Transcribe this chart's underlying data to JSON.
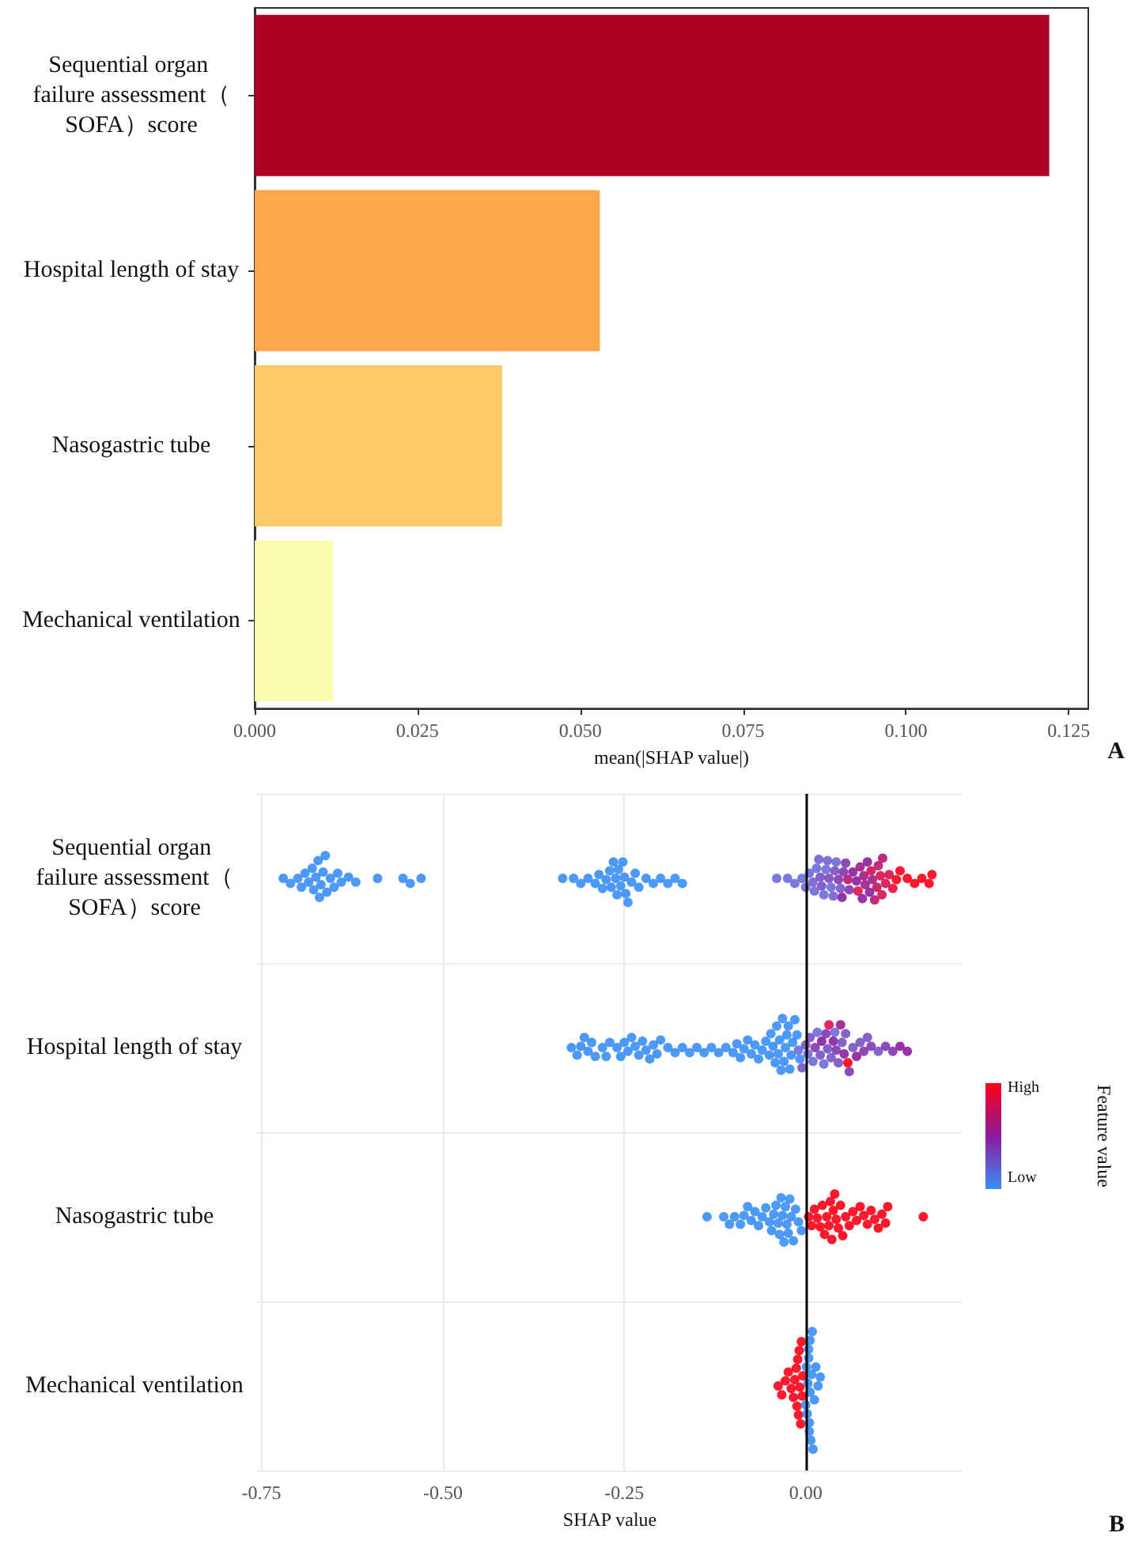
{
  "chart_data": [
    {
      "type": "bar",
      "orientation": "horizontal",
      "xlabel": "mean(|SHAP value|)",
      "annotations": [
        "A"
      ],
      "categories": [
        "Sequential organ failure assessment（SOFA）score",
        "Hospital length of stay",
        "Nasogastric tube",
        "Mechanical ventilation"
      ],
      "values": [
        0.122,
        0.053,
        0.038,
        0.012
      ],
      "colors": [
        "#ad0022",
        "#fba84a",
        "#fdc868",
        "#fdfdb0"
      ],
      "xlim": [
        0,
        0.128
      ],
      "xticks": [
        {
          "value": 0,
          "label": "0.000"
        },
        0.025,
        {
          "value": 0.05,
          "label": "0.050"
        },
        0.075,
        {
          "value": 0.1,
          "label": "0.100"
        },
        0.125
      ],
      "grid": false
    },
    {
      "type": "scatter",
      "orientation": "horizontal",
      "xlabel": "SHAP value",
      "clabel": "Feature value",
      "annotations": [
        "B",
        "High",
        "Low"
      ],
      "categories": [
        "Sequential organ failure assessment（SOFA）score",
        "Hospital length of stay",
        "Nasogastric tube",
        "Mechanical ventilation"
      ],
      "xlim": [
        -0.755,
        0.215
      ],
      "xticks": [
        -0.75,
        {
          "value": -0.5,
          "label": "-0.50"
        },
        -0.25,
        {
          "value": 0,
          "label": "0.00"
        }
      ],
      "grid": true,
      "marker": "circle",
      "ref_lines": [
        {
          "axis": "x",
          "value": 0,
          "label": null,
          "color": "#000000"
        }
      ],
      "series": [
        {
          "x": [
            "Sequential organ failure assessment（SOFA）score",
            "Sequential organ failure assessment（SOFA）score",
            "Sequential organ failure assessment（SOFA）score",
            "Sequential organ failure assessment（SOFA）score",
            "Sequential organ failure assessment（SOFA）score",
            "Sequential organ failure assessment（SOFA）score",
            "Sequential organ failure assessment（SOFA）score",
            "Sequential organ failure assessment（SOFA）score",
            "Sequential organ failure assessment（SOFA）score",
            "Sequential organ failure assessment（SOFA）score",
            "Sequential organ failure assessment（SOFA）score",
            "Sequential organ failure assessment（SOFA）score",
            "Sequential organ failure assessment（SOFA）score",
            "Sequential organ failure assessment（SOFA）score",
            "Sequential organ failure assessment（SOFA）score",
            "Sequential organ failure assessment（SOFA）score",
            "Sequential organ failure assessment（SOFA）score",
            "Sequential organ failure assessment（SOFA）score",
            "Sequential organ failure assessment（SOFA）score",
            "Sequential organ failure assessment（SOFA）score",
            "Sequential organ failure assessment（SOFA）score",
            "Sequential organ failure assessment（SOFA）score",
            "Sequential organ failure assessment（SOFA）score",
            "Sequential organ failure assessment（SOFA）score",
            "Sequential organ failure assessment（SOFA）score",
            "Sequential organ failure assessment（SOFA）score",
            "Sequential organ failure assessment（SOFA）score",
            "Sequential organ failure assessment（SOFA）score",
            "Sequential organ failure assessment（SOFA）score",
            "Sequential organ failure assessment（SOFA）score",
            "Sequential organ failure assessment（SOFA）score",
            "Sequential organ failure assessment（SOFA）score",
            "Sequential organ failure assessment（SOFA）score",
            "Sequential organ failure assessment（SOFA）score",
            "Sequential organ failure assessment（SOFA）score",
            "Sequential organ failure assessment（SOFA）score",
            "Sequential organ failure assessment（SOFA）score",
            "Sequential organ failure assessment（SOFA）score",
            "Sequential organ failure assessment（SOFA）score",
            "Sequential organ failure assessment（SOFA）score",
            "Sequential organ failure assessment（SOFA）score",
            "Sequential organ failure assessment（SOFA）score",
            "Sequential organ failure assessment（SOFA）score",
            "Sequential organ failure assessment（SOFA）score",
            "Sequential organ failure assessment（SOFA）score",
            "Sequential organ failure assessment（SOFA）score",
            "Sequential organ failure assessment（SOFA）score",
            "Sequential organ failure assessment（SOFA）score",
            "Sequential organ failure assessment（SOFA）score",
            "Sequential organ failure assessment（SOFA）score",
            "Sequential organ failure assessment（SOFA）score",
            "Sequential organ failure assessment（SOFA）score",
            "Sequential organ failure assessment（SOFA）score",
            "Sequential organ failure assessment（SOFA）score",
            "Sequential organ failure assessment（SOFA）score",
            "Sequential organ failure assessment（SOFA）score",
            "Sequential organ failure assessment（SOFA）score",
            "Sequential organ failure assessment（SOFA）score",
            "Sequential organ failure assessment（SOFA）score",
            "Sequential organ failure assessment（SOFA）score",
            "Sequential organ failure assessment（SOFA）score",
            "Sequential organ failure assessment（SOFA）score",
            "Sequential organ failure assessment（SOFA）score",
            "Sequential organ failure assessment（SOFA）score",
            "Sequential organ failure assessment（SOFA）score",
            "Sequential organ failure assessment（SOFA）score",
            "Sequential organ failure assessment（SOFA）score",
            "Sequential organ failure assessment（SOFA）score",
            "Sequential organ failure assessment（SOFA）score",
            "Sequential organ failure assessment（SOFA）score",
            "Sequential organ failure assessment（SOFA）score",
            "Sequential organ failure assessment（SOFA）score",
            "Sequential organ failure assessment（SOFA）score",
            "Sequential organ failure assessment（SOFA）score",
            "Sequential organ failure assessment（SOFA）score",
            "Sequential organ failure assessment（SOFA）score",
            "Sequential organ failure assessment（SOFA）score",
            "Sequential organ failure assessment（SOFA）score",
            "Sequential organ failure assessment（SOFA）score",
            "Sequential organ failure assessment（SOFA）score",
            "Sequential organ failure assessment（SOFA）score",
            "Sequential organ failure assessment（SOFA）score",
            "Sequential organ failure assessment（SOFA）score",
            "Sequential organ failure assessment（SOFA）score",
            "Sequential organ failure assessment（SOFA）score",
            "Sequential organ failure assessment（SOFA）score",
            "Sequential organ failure assessment（SOFA）score",
            "Sequential organ failure assessment（SOFA）score",
            "Sequential organ failure assessment（SOFA）score",
            "Sequential organ failure assessment（SOFA）score",
            "Sequential organ failure assessment（SOFA）score",
            "Sequential organ failure assessment（SOFA）score",
            "Sequential organ failure assessment（SOFA）score",
            "Sequential organ failure assessment（SOFA）score",
            "Sequential organ failure assessment（SOFA）score",
            "Sequential organ failure assessment（SOFA）score",
            "Sequential organ failure assessment（SOFA）score",
            "Sequential organ failure assessment（SOFA）score",
            "Sequential organ failure assessment（SOFA）score",
            "Sequential organ failure assessment（SOFA）score",
            "Sequential organ failure assessment（SOFA）score",
            "Sequential organ failure assessment（SOFA）score",
            "Sequential organ failure assessment（SOFA）score",
            "Sequential organ failure assessment（SOFA）score",
            "Sequential organ failure assessment（SOFA）score",
            "Sequential organ failure assessment（SOFA）score",
            "Sequential organ failure assessment（SOFA）score"
          ],
          "values": [
            -0.72,
            -0.71,
            -0.7,
            -0.695,
            -0.69,
            -0.685,
            -0.68,
            -0.678,
            -0.675,
            -0.672,
            -0.67,
            -0.668,
            -0.665,
            -0.662,
            -0.66,
            -0.655,
            -0.65,
            -0.645,
            -0.64,
            -0.63,
            -0.62,
            -0.59,
            -0.555,
            -0.545,
            -0.53,
            -0.335,
            -0.32,
            -0.31,
            -0.3,
            -0.29,
            -0.285,
            -0.28,
            -0.275,
            -0.27,
            -0.268,
            -0.265,
            -0.262,
            -0.26,
            -0.258,
            -0.255,
            -0.252,
            -0.25,
            -0.248,
            -0.245,
            -0.24,
            -0.235,
            -0.23,
            -0.22,
            -0.21,
            -0.2,
            -0.19,
            -0.18,
            -0.17,
            -0.04,
            -0.025,
            -0.015,
            -0.005,
            0,
            0.005,
            0.01,
            0.015,
            0.02,
            0.025,
            0.03,
            0.035,
            0.04,
            0.045,
            0.05,
            0.055,
            0.06,
            0.065,
            0.07,
            0.075,
            0.08,
            0.085,
            0.09,
            0.095,
            0.1,
            0.105,
            0.11,
            0.12,
            0.13,
            0.14,
            0.15,
            0.16,
            0.17,
            0.012,
            0.018,
            0.022,
            0.028,
            0.032,
            0.038,
            0.042,
            0.048,
            0.052,
            0.058,
            0.072,
            0.078,
            0.082,
            0.088,
            0.092,
            0.098,
            0.103,
            0.106,
            0.115,
            0.125,
            0.174
          ],
          "colors": [
            "#3a8ef6",
            "#3a8ef6",
            "#3a8ef6",
            "#3a8ef6",
            "#3a8ef6",
            "#3a8ef6",
            "#3a8ef6",
            "#3a8ef6",
            "#3a8ef6",
            "#3a8ef6",
            "#3a8ef6",
            "#3a8ef6",
            "#3a8ef6",
            "#3a8ef6",
            "#3a8ef6",
            "#3a8ef6",
            "#3a8ef6",
            "#3a8ef6",
            "#3a8ef6",
            "#3a8ef6",
            "#3a8ef6",
            "#3a8ef6",
            "#3a8ef6",
            "#3a8ef6",
            "#3a8ef6",
            "#3a8ef6",
            "#3a8ef6",
            "#3a8ef6",
            "#3a8ef6",
            "#3a8ef6",
            "#3a8ef6",
            "#3a8ef6",
            "#3a8ef6",
            "#3a8ef6",
            "#3a8ef6",
            "#3a8ef6",
            "#3a8ef6",
            "#3a8ef6",
            "#3a8ef6",
            "#3a8ef6",
            "#3a8ef6",
            "#3a8ef6",
            "#3a8ef6",
            "#3a8ef6",
            "#3a8ef6",
            "#3a8ef6",
            "#3a8ef6",
            "#3a8ef6",
            "#3a8ef6",
            "#3a8ef6",
            "#3a8ef6",
            "#3a8ef6",
            "#3a8ef6",
            "#6b6bd9",
            "#6b6bd9",
            "#6b6bd9",
            "#6b6bd9",
            "#6b6bd9",
            "#6b6bd9",
            "#7060d0",
            "#6b6bd9",
            "#7852c4",
            "#6b6bd9",
            "#7060d0",
            "#6b6bd9",
            "#7852c4",
            "#8236ae",
            "#8c1f9e",
            "#8236ae",
            "#8236ae",
            "#8c1f9e",
            "#8c1f9e",
            "#a01a8a",
            "#a01a8a",
            "#8c1f9e",
            "#d80f4e",
            "#bb1570",
            "#bb1570",
            "#d80f4e",
            "#d80f4e",
            "#e80c38",
            "#ff0016",
            "#ff0016",
            "#ff0016",
            "#ff0016",
            "#ff0016",
            "#6b6bd9",
            "#7060d0",
            "#7852c4",
            "#6b6bd9",
            "#7d48ba",
            "#7060d0",
            "#6b6bd9",
            "#7852c4",
            "#8236ae",
            "#bb1570",
            "#d80f4e",
            "#8c1f9e",
            "#a01a8a",
            "#8c1f9e",
            "#a01a8a",
            "#c8125f",
            "#d80f4e",
            "#bb1570",
            "#d80f4e",
            "#ff0016",
            "#ff0016"
          ]
        },
        {
          "x": [
            "Hospital length of stay",
            "Hospital length of stay",
            "Hospital length of stay",
            "Hospital length of stay",
            "Hospital length of stay",
            "Hospital length of stay",
            "Hospital length of stay",
            "Hospital length of stay",
            "Hospital length of stay",
            "Hospital length of stay",
            "Hospital length of stay",
            "Hospital length of stay",
            "Hospital length of stay",
            "Hospital length of stay",
            "Hospital length of stay",
            "Hospital length of stay",
            "Hospital length of stay",
            "Hospital length of stay",
            "Hospital length of stay",
            "Hospital length of stay",
            "Hospital length of stay",
            "Hospital length of stay",
            "Hospital length of stay",
            "Hospital length of stay",
            "Hospital length of stay",
            "Hospital length of stay",
            "Hospital length of stay",
            "Hospital length of stay",
            "Hospital length of stay",
            "Hospital length of stay",
            "Hospital length of stay",
            "Hospital length of stay",
            "Hospital length of stay",
            "Hospital length of stay",
            "Hospital length of stay",
            "Hospital length of stay",
            "Hospital length of stay",
            "Hospital length of stay",
            "Hospital length of stay",
            "Hospital length of stay",
            "Hospital length of stay",
            "Hospital length of stay",
            "Hospital length of stay",
            "Hospital length of stay",
            "Hospital length of stay",
            "Hospital length of stay",
            "Hospital length of stay",
            "Hospital length of stay",
            "Hospital length of stay",
            "Hospital length of stay",
            "Hospital length of stay",
            "Hospital length of stay",
            "Hospital length of stay",
            "Hospital length of stay",
            "Hospital length of stay",
            "Hospital length of stay",
            "Hospital length of stay",
            "Hospital length of stay",
            "Hospital length of stay",
            "Hospital length of stay",
            "Hospital length of stay",
            "Hospital length of stay",
            "Hospital length of stay",
            "Hospital length of stay",
            "Hospital length of stay",
            "Hospital length of stay",
            "Hospital length of stay",
            "Hospital length of stay",
            "Hospital length of stay",
            "Hospital length of stay",
            "Hospital length of stay",
            "Hospital length of stay",
            "Hospital length of stay",
            "Hospital length of stay",
            "Hospital length of stay",
            "Hospital length of stay",
            "Hospital length of stay",
            "Hospital length of stay",
            "Hospital length of stay",
            "Hospital length of stay",
            "Hospital length of stay",
            "Hospital length of stay",
            "Hospital length of stay",
            "Hospital length of stay",
            "Hospital length of stay",
            "Hospital length of stay",
            "Hospital length of stay",
            "Hospital length of stay",
            "Hospital length of stay",
            "Hospital length of stay",
            "Hospital length of stay",
            "Hospital length of stay",
            "Hospital length of stay",
            "Hospital length of stay",
            "Hospital length of stay",
            "Hospital length of stay",
            "Hospital length of stay"
          ],
          "values": [
            -0.323,
            -0.315,
            -0.31,
            -0.305,
            -0.3,
            -0.295,
            -0.29,
            -0.28,
            -0.275,
            -0.27,
            -0.26,
            -0.255,
            -0.25,
            -0.245,
            -0.24,
            -0.235,
            -0.23,
            -0.225,
            -0.22,
            -0.215,
            -0.21,
            -0.205,
            -0.2,
            -0.19,
            -0.18,
            -0.17,
            -0.16,
            -0.15,
            -0.14,
            -0.13,
            -0.12,
            -0.11,
            -0.1,
            -0.095,
            -0.09,
            -0.085,
            -0.08,
            -0.075,
            -0.07,
            -0.065,
            -0.06,
            -0.055,
            -0.05,
            -0.048,
            -0.045,
            -0.042,
            -0.04,
            -0.038,
            -0.036,
            -0.034,
            -0.032,
            -0.03,
            -0.028,
            -0.026,
            -0.024,
            -0.022,
            -0.02,
            -0.018,
            -0.015,
            -0.012,
            -0.01,
            -0.008,
            -0.005,
            0,
            0.003,
            0.006,
            0.01,
            0.013,
            0.016,
            0.02,
            0.022,
            0.025,
            0.028,
            0.03,
            0.032,
            0.035,
            0.038,
            0.04,
            0.042,
            0.045,
            0.048,
            0.05,
            0.053,
            0.055,
            0.058,
            0.06,
            0.065,
            0.07,
            0.075,
            0.08,
            0.085,
            0.09,
            0.1,
            0.11,
            0.12,
            0.13,
            0.14
          ],
          "colors": [
            "#3a8ef6",
            "#3a8ef6",
            "#3a8ef6",
            "#3a8ef6",
            "#3a8ef6",
            "#3a8ef6",
            "#3a8ef6",
            "#3a8ef6",
            "#3a8ef6",
            "#3a8ef6",
            "#3a8ef6",
            "#3a8ef6",
            "#3a8ef6",
            "#3a8ef6",
            "#3a8ef6",
            "#3a8ef6",
            "#3a8ef6",
            "#3a8ef6",
            "#3a8ef6",
            "#3a8ef6",
            "#3a8ef6",
            "#3a8ef6",
            "#3a8ef6",
            "#3a8ef6",
            "#3a8ef6",
            "#3a8ef6",
            "#3a8ef6",
            "#3a8ef6",
            "#3a8ef6",
            "#3a8ef6",
            "#3a8ef6",
            "#3a8ef6",
            "#3a8ef6",
            "#3a8ef6",
            "#3a8ef6",
            "#3a8ef6",
            "#3a8ef6",
            "#3a8ef6",
            "#3a8ef6",
            "#3a8ef6",
            "#3a8ef6",
            "#3a8ef6",
            "#3a8ef6",
            "#3a8ef6",
            "#3a8ef6",
            "#3a8ef6",
            "#3a8ef6",
            "#3a8ef6",
            "#3a8ef6",
            "#3a8ef6",
            "#3a8ef6",
            "#3a8ef6",
            "#3a8ef6",
            "#3a8ef6",
            "#3a8ef6",
            "#3a8ef6",
            "#3a8ef6",
            "#3a8ef6",
            "#3a8ef6",
            "#3a8ef6",
            "#6b6bd9",
            "#3a8ef6",
            "#7852c4",
            "#7852c4",
            "#6b6bd9",
            "#7852c4",
            "#6b6bd9",
            "#8236ae",
            "#6b6bd9",
            "#7852c4",
            "#8c1f9e",
            "#6b6bd9",
            "#8236ae",
            "#7852c4",
            "#d80f4e",
            "#7852c4",
            "#8c1f9e",
            "#6b6bd9",
            "#8236ae",
            "#7852c4",
            "#a01a8a",
            "#7852c4",
            "#8c1f9e",
            "#7852c4",
            "#ff0016",
            "#8236ae",
            "#7852c4",
            "#8c1f9e",
            "#7852c4",
            "#8236ae",
            "#7852c4",
            "#8236ae",
            "#7852c4",
            "#8236ae",
            "#8236ae",
            "#8c1f9e",
            "#8c1f9e"
          ]
        },
        {
          "x": [
            "Nasogastric tube",
            "Nasogastric tube",
            "Nasogastric tube",
            "Nasogastric tube",
            "Nasogastric tube",
            "Nasogastric tube",
            "Nasogastric tube",
            "Nasogastric tube",
            "Nasogastric tube",
            "Nasogastric tube",
            "Nasogastric tube",
            "Nasogastric tube",
            "Nasogastric tube",
            "Nasogastric tube",
            "Nasogastric tube",
            "Nasogastric tube",
            "Nasogastric tube",
            "Nasogastric tube",
            "Nasogastric tube",
            "Nasogastric tube",
            "Nasogastric tube",
            "Nasogastric tube",
            "Nasogastric tube",
            "Nasogastric tube",
            "Nasogastric tube",
            "Nasogastric tube",
            "Nasogastric tube",
            "Nasogastric tube",
            "Nasogastric tube",
            "Nasogastric tube",
            "Nasogastric tube",
            "Nasogastric tube",
            "Nasogastric tube",
            "Nasogastric tube",
            "Nasogastric tube",
            "Nasogastric tube",
            "Nasogastric tube",
            "Nasogastric tube",
            "Nasogastric tube",
            "Nasogastric tube",
            "Nasogastric tube",
            "Nasogastric tube",
            "Nasogastric tube",
            "Nasogastric tube",
            "Nasogastric tube",
            "Nasogastric tube",
            "Nasogastric tube",
            "Nasogastric tube",
            "Nasogastric tube",
            "Nasogastric tube",
            "Nasogastric tube",
            "Nasogastric tube",
            "Nasogastric tube",
            "Nasogastric tube",
            "Nasogastric tube",
            "Nasogastric tube",
            "Nasogastric tube",
            "Nasogastric tube",
            "Nasogastric tube",
            "Nasogastric tube",
            "Nasogastric tube"
          ],
          "values": [
            -0.136,
            -0.113,
            -0.105,
            -0.098,
            -0.09,
            -0.085,
            -0.08,
            -0.075,
            -0.07,
            -0.065,
            -0.06,
            -0.055,
            -0.05,
            -0.047,
            -0.044,
            -0.041,
            -0.038,
            -0.036,
            -0.034,
            -0.032,
            -0.03,
            -0.028,
            -0.026,
            -0.024,
            -0.022,
            -0.02,
            -0.017,
            -0.014,
            -0.01,
            -0.006,
            0.004,
            0.008,
            0.012,
            0.016,
            0.02,
            0.023,
            0.026,
            0.029,
            0.032,
            0.034,
            0.036,
            0.038,
            0.04,
            0.042,
            0.045,
            0.048,
            0.051,
            0.055,
            0.06,
            0.065,
            0.07,
            0.075,
            0.08,
            0.085,
            0.09,
            0.095,
            0.1,
            0.105,
            0.11,
            0.113,
            0.162
          ],
          "colors": [
            "#3a8ef6",
            "#3a8ef6",
            "#3a8ef6",
            "#3a8ef6",
            "#3a8ef6",
            "#3a8ef6",
            "#3a8ef6",
            "#3a8ef6",
            "#3a8ef6",
            "#3a8ef6",
            "#3a8ef6",
            "#3a8ef6",
            "#3a8ef6",
            "#3a8ef6",
            "#3a8ef6",
            "#3a8ef6",
            "#3a8ef6",
            "#3a8ef6",
            "#3a8ef6",
            "#3a8ef6",
            "#3a8ef6",
            "#3a8ef6",
            "#3a8ef6",
            "#3a8ef6",
            "#3a8ef6",
            "#3a8ef6",
            "#3a8ef6",
            "#3a8ef6",
            "#3a8ef6",
            "#3a8ef6",
            "#ff0016",
            "#ff0016",
            "#ff0016",
            "#ff0016",
            "#ff0016",
            "#ff0016",
            "#ff0016",
            "#ff0016",
            "#ff0016",
            "#ff0016",
            "#ff0016",
            "#ff0016",
            "#ff0016",
            "#ff0016",
            "#ff0016",
            "#ff0016",
            "#ff0016",
            "#ff0016",
            "#ff0016",
            "#ff0016",
            "#ff0016",
            "#ff0016",
            "#ff0016",
            "#ff0016",
            "#ff0016",
            "#ff0016",
            "#ff0016",
            "#ff0016",
            "#ff0016",
            "#ff0016",
            "#ff0016"
          ]
        },
        {
          "x": [
            "Mechanical ventilation",
            "Mechanical ventilation",
            "Mechanical ventilation",
            "Mechanical ventilation",
            "Mechanical ventilation",
            "Mechanical ventilation",
            "Mechanical ventilation",
            "Mechanical ventilation",
            "Mechanical ventilation",
            "Mechanical ventilation",
            "Mechanical ventilation",
            "Mechanical ventilation",
            "Mechanical ventilation",
            "Mechanical ventilation",
            "Mechanical ventilation",
            "Mechanical ventilation",
            "Mechanical ventilation",
            "Mechanical ventilation",
            "Mechanical ventilation",
            "Mechanical ventilation",
            "Mechanical ventilation",
            "Mechanical ventilation",
            "Mechanical ventilation",
            "Mechanical ventilation",
            "Mechanical ventilation",
            "Mechanical ventilation",
            "Mechanical ventilation",
            "Mechanical ventilation",
            "Mechanical ventilation",
            "Mechanical ventilation",
            "Mechanical ventilation",
            "Mechanical ventilation",
            "Mechanical ventilation",
            "Mechanical ventilation",
            "Mechanical ventilation"
          ],
          "values": [
            -0.038,
            -0.033,
            -0.028,
            -0.024,
            -0.02,
            -0.017,
            -0.015,
            -0.013,
            -0.012,
            -0.011,
            -0.01,
            -0.009,
            -0.008,
            -0.007,
            -0.006,
            -0.005,
            -0.004,
            0,
            0.001,
            0.002,
            0.003,
            0.004,
            0.004,
            0.005,
            0.005,
            0.006,
            0.006,
            0.007,
            0.008,
            0.009,
            0.01,
            0.012,
            0.014,
            0.017,
            0.02
          ],
          "colors": [
            "#ff0016",
            "#ff0016",
            "#ff0016",
            "#ff0016",
            "#ff0016",
            "#ff0016",
            "#ff0016",
            "#ff0016",
            "#ff0016",
            "#ff0016",
            "#ff0016",
            "#ff0016",
            "#ff0016",
            "#ff0016",
            "#ff0016",
            "#ff0016",
            "#ff0016",
            "#3a8ef6",
            "#3a8ef6",
            "#3a8ef6",
            "#3a8ef6",
            "#3a8ef6",
            "#3a8ef6",
            "#3a8ef6",
            "#3a8ef6",
            "#3a8ef6",
            "#3a8ef6",
            "#3a8ef6",
            "#3a8ef6",
            "#3a8ef6",
            "#3a8ef6",
            "#3a8ef6",
            "#3a8ef6",
            "#3a8ef6",
            "#3a8ef6"
          ]
        }
      ]
    }
  ]
}
